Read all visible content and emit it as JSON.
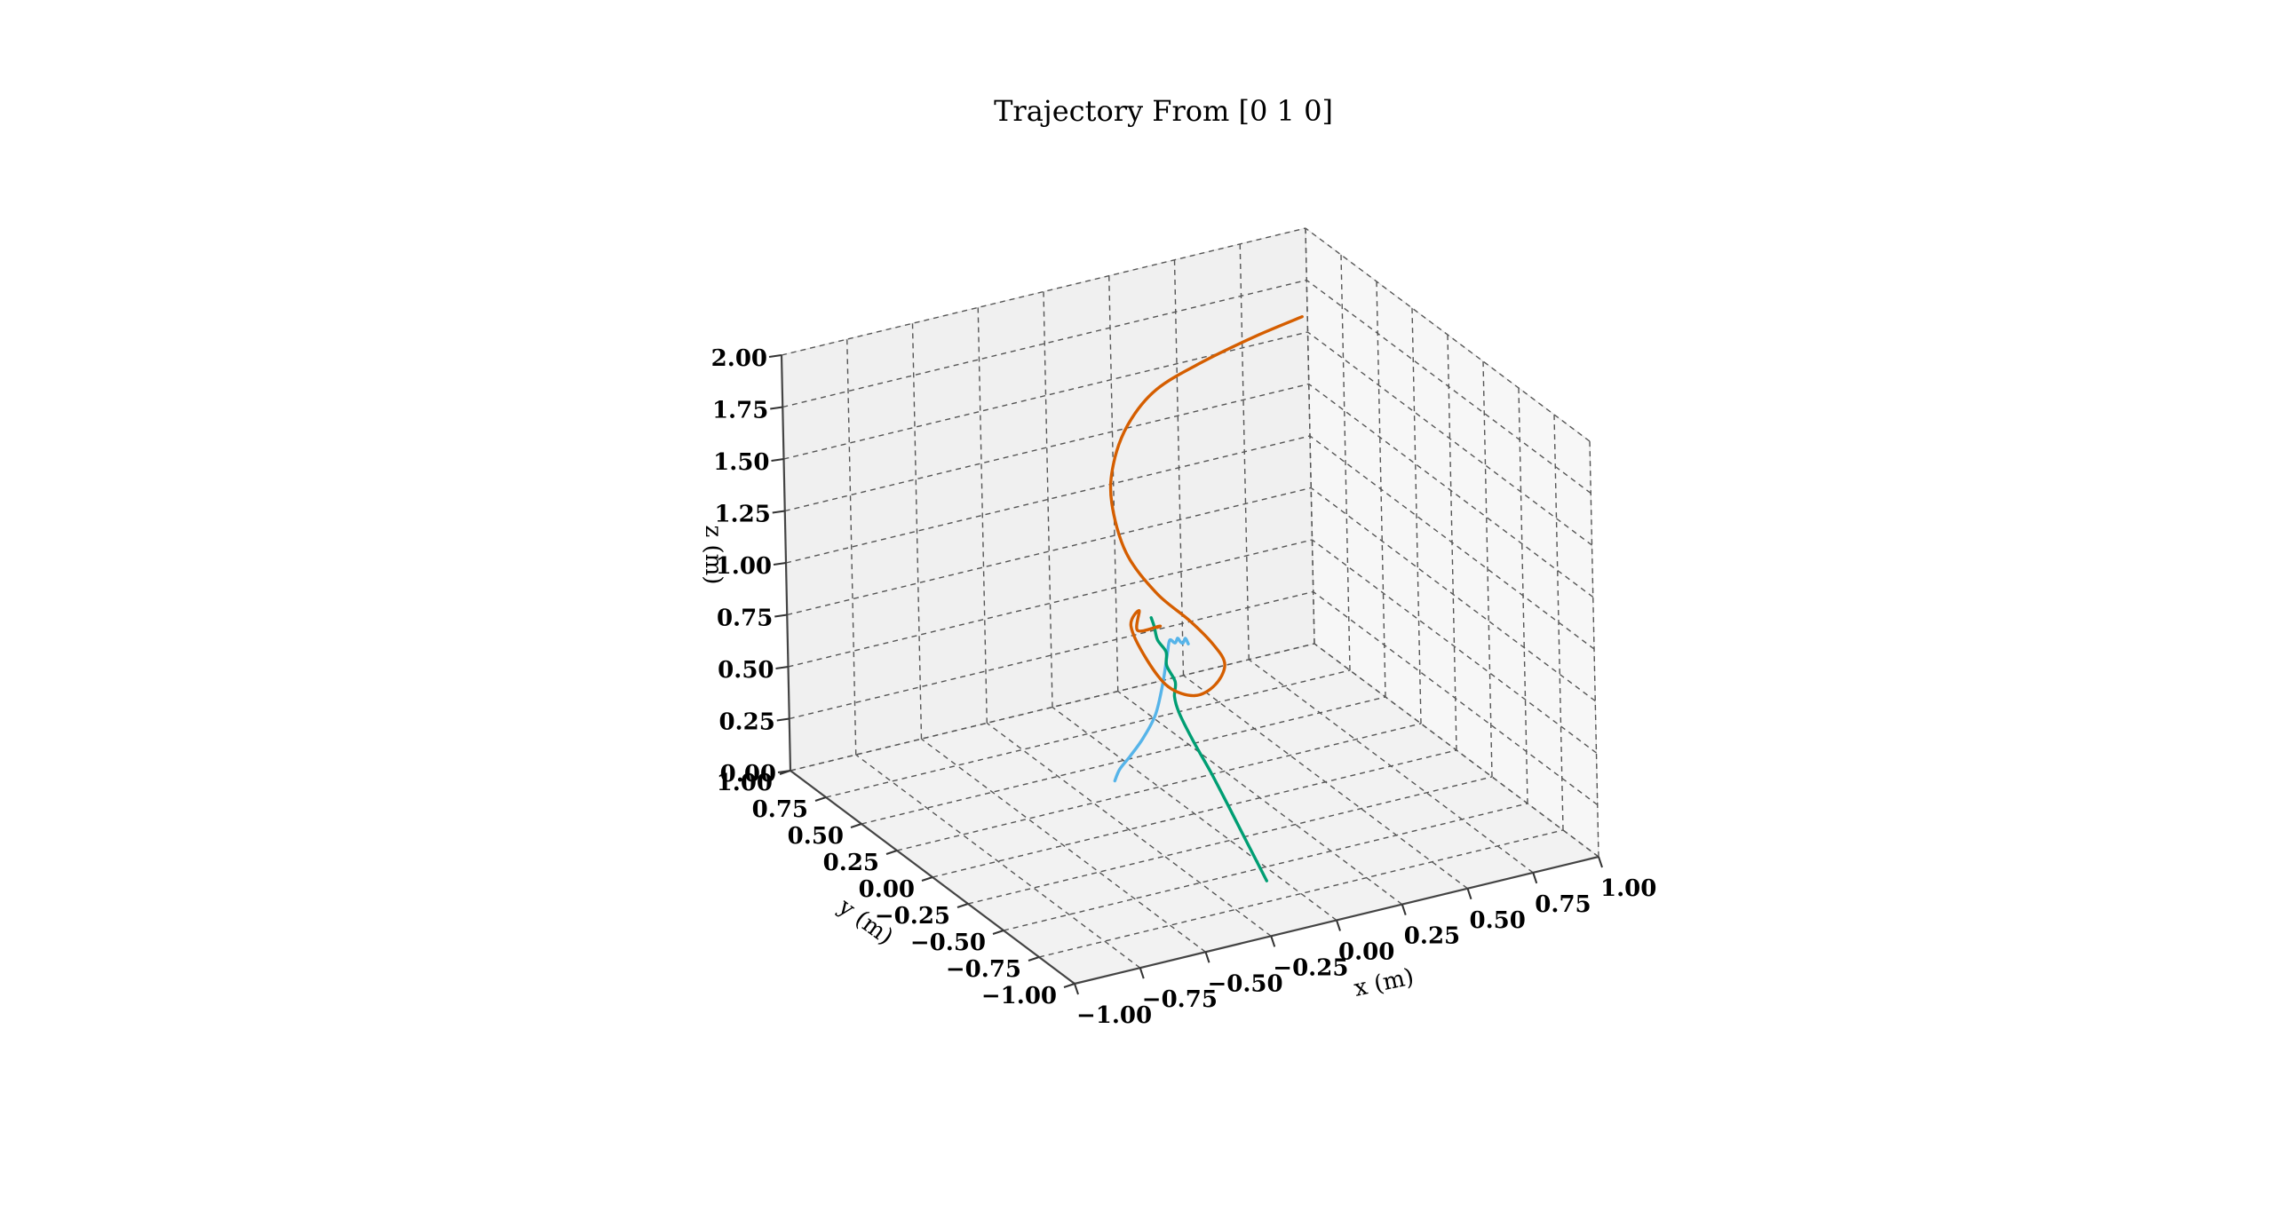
{
  "chart_data": {
    "type": "line3d",
    "title": "Trajectory From [0 1 0]",
    "xlabel": "x (m)",
    "ylabel": "y (m)",
    "zlabel": "z (m)",
    "xlim": [
      -1.0,
      1.0
    ],
    "ylim": [
      -1.0,
      1.0
    ],
    "zlim": [
      0.0,
      2.0
    ],
    "xticks": [
      "−1.00",
      "−0.75",
      "−0.50",
      "−0.25",
      "0.00",
      "0.25",
      "0.50",
      "0.75",
      "1.00"
    ],
    "yticks": [
      "−1.00",
      "−0.75",
      "−0.50",
      "−0.25",
      "0.00",
      "0.25",
      "0.50",
      "0.75",
      "1.00"
    ],
    "zticks": [
      "0.00",
      "0.25",
      "0.50",
      "0.75",
      "1.00",
      "1.25",
      "1.50",
      "1.75",
      "2.00"
    ],
    "grid": true,
    "series": [
      {
        "color": "#56b4e9",
        "x": [
          -0.3,
          -0.28,
          -0.24,
          -0.19,
          -0.14,
          -0.11,
          -0.09,
          -0.08,
          -0.06,
          -0.05,
          -0.04,
          -0.03,
          -0.02,
          -0.01
        ],
        "y": [
          0.0,
          0.0,
          0.0,
          0.0,
          0.0,
          0.0,
          0.0,
          0.0,
          0.0,
          0.0,
          0.0,
          0.0,
          0.0,
          0.0
        ],
        "z": [
          0.25,
          0.3,
          0.35,
          0.42,
          0.52,
          0.66,
          0.8,
          0.86,
          0.84,
          0.86,
          0.84,
          0.83,
          0.85,
          0.82
        ]
      },
      {
        "color": "#009e73",
        "x": [
          -0.05,
          -0.04,
          -0.03,
          -0.03,
          -0.04,
          -0.05,
          -0.04,
          -0.02,
          -0.03,
          -0.01,
          -0.02,
          -0.01,
          0.0
        ],
        "y": [
          -0.6,
          -0.45,
          -0.3,
          -0.18,
          -0.08,
          0.0,
          0.05,
          0.08,
          0.12,
          0.16,
          0.2,
          0.24,
          0.28
        ],
        "z": [
          0.0,
          0.1,
          0.2,
          0.3,
          0.4,
          0.5,
          0.55,
          0.6,
          0.66,
          0.7,
          0.74,
          0.78,
          0.8
        ]
      },
      {
        "color": "#d55e00",
        "x": [
          -0.02,
          0.03,
          -0.01,
          0.04,
          0.05,
          0.14,
          0.24,
          0.36,
          0.46,
          0.52,
          0.5,
          0.43,
          0.33,
          0.24,
          0.21,
          0.23,
          0.3,
          0.42,
          0.6,
          0.8,
          0.98
        ],
        "y": [
          0.2,
          0.28,
          0.36,
          0.44,
          0.52,
          0.58,
          0.62,
          0.66,
          0.7,
          0.74,
          0.78,
          0.82,
          0.86,
          0.9,
          0.94,
          0.96,
          0.98,
          1.0,
          1.0,
          1.0,
          1.0
        ],
        "z": [
          0.8,
          0.75,
          0.7,
          0.74,
          0.62,
          0.4,
          0.22,
          0.12,
          0.12,
          0.18,
          0.26,
          0.38,
          0.52,
          0.72,
          0.95,
          1.12,
          1.28,
          1.4,
          1.48,
          1.54,
          1.58
        ]
      }
    ]
  }
}
